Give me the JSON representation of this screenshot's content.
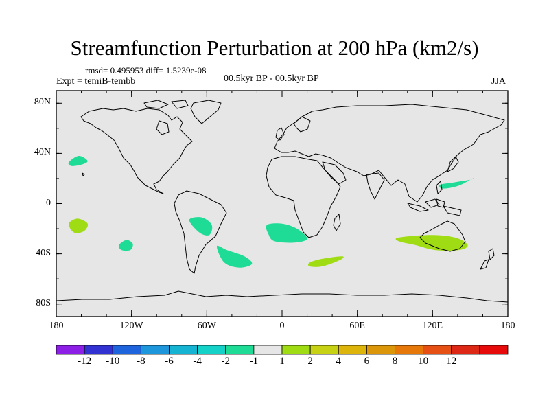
{
  "title": "Streamfunction Perturbation at 200 hPa (km2/s)",
  "stats": "rmsd= 0.495953 diff= 1.5239e-08",
  "experiment": "Expt = temiB-tembb",
  "period": "00.5kyr BP - 00.5kyr BP",
  "season": "JJA",
  "lat_labels": [
    {
      "label": "80N",
      "lat": 80
    },
    {
      "label": "40N",
      "lat": 40
    },
    {
      "label": "0",
      "lat": 0
    },
    {
      "label": "40S",
      "lat": -40
    },
    {
      "label": "80S",
      "lat": -80
    }
  ],
  "lon_labels": [
    {
      "label": "180",
      "lon": -180
    },
    {
      "label": "120W",
      "lon": -120
    },
    {
      "label": "60W",
      "lon": -60
    },
    {
      "label": "0",
      "lon": 0
    },
    {
      "label": "60E",
      "lon": 60
    },
    {
      "label": "120E",
      "lon": 120
    },
    {
      "label": "180",
      "lon": 180
    }
  ],
  "colorbar": {
    "colors": [
      "#8c1ee6",
      "#3232d2",
      "#1e64dc",
      "#1e96dc",
      "#14b4d2",
      "#14d2c8",
      "#1edc96",
      "#e6e6e6",
      "#a0dc14",
      "#c8d214",
      "#dcb40a",
      "#dc960a",
      "#e6780a",
      "#e65014",
      "#dc2814",
      "#e60a0a"
    ],
    "labels": [
      "-12",
      "-10",
      "-8",
      "-6",
      "-4",
      "-2",
      "-1",
      "1",
      "2",
      "4",
      "6",
      "8",
      "10",
      "12"
    ]
  },
  "anomalies": [
    {
      "value_range": "-2 to -1",
      "color": "#1edc96",
      "points": [
        [
          -170,
          33
        ],
        [
          -162,
          38
        ],
        [
          -155,
          34
        ],
        [
          -160,
          31
        ],
        [
          -168,
          30
        ]
      ]
    },
    {
      "value_range": "1 to 2",
      "color": "#a0dc14",
      "points": [
        [
          -170,
          -16
        ],
        [
          -163,
          -12
        ],
        [
          -155,
          -16
        ],
        [
          -158,
          -22
        ],
        [
          -166,
          -23
        ]
      ]
    },
    {
      "value_range": "-2 to -1",
      "color": "#1edc96",
      "points": [
        [
          -130,
          -33
        ],
        [
          -124,
          -29
        ],
        [
          -119,
          -32
        ],
        [
          -121,
          -37
        ],
        [
          -128,
          -37
        ]
      ]
    },
    {
      "value_range": "-2 to -1",
      "color": "#1edc96",
      "points": [
        [
          -74,
          -13
        ],
        [
          -64,
          -11
        ],
        [
          -56,
          -17
        ],
        [
          -58,
          -25
        ],
        [
          -66,
          -23
        ]
      ]
    },
    {
      "value_range": "-2 to -1",
      "color": "#1edc96",
      "points": [
        [
          -52,
          -34
        ],
        [
          -44,
          -37
        ],
        [
          -30,
          -42
        ],
        [
          -24,
          -48
        ],
        [
          -34,
          -51
        ],
        [
          -46,
          -47
        ]
      ]
    },
    {
      "value_range": "-2 to -1",
      "color": "#1edc96",
      "points": [
        [
          -12,
          -17
        ],
        [
          0,
          -16
        ],
        [
          12,
          -20
        ],
        [
          20,
          -28
        ],
        [
          10,
          -31
        ],
        [
          -6,
          -30
        ],
        [
          -11,
          -24
        ]
      ]
    },
    {
      "value_range": "1 to 2",
      "color": "#a0dc14",
      "points": [
        [
          22,
          -47
        ],
        [
          32,
          -44
        ],
        [
          48,
          -42
        ],
        [
          46,
          -45
        ],
        [
          32,
          -50
        ],
        [
          22,
          -50
        ]
      ]
    },
    {
      "value_range": "1 to 2",
      "color": "#a0dc14",
      "points": [
        [
          93,
          -27
        ],
        [
          118,
          -25
        ],
        [
          138,
          -27
        ],
        [
          148,
          -33
        ],
        [
          141,
          -37
        ],
        [
          122,
          -37
        ],
        [
          106,
          -33
        ],
        [
          93,
          -30
        ]
      ]
    },
    {
      "value_range": "-2 to -1",
      "color": "#1edc96",
      "points": [
        [
          126,
          15
        ],
        [
          138,
          17
        ],
        [
          150,
          19
        ],
        [
          152,
          20
        ],
        [
          140,
          14
        ],
        [
          128,
          12
        ]
      ]
    }
  ]
}
